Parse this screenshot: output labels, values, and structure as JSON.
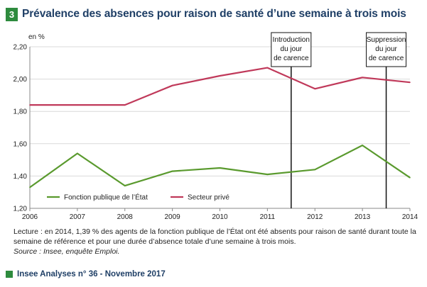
{
  "header": {
    "badge": "3",
    "title": "Prévalence des absences pour raison de santé d’une semaine à trois mois"
  },
  "colors": {
    "green": "#5a9a2e",
    "red": "#c0395a",
    "title": "#1f3f66",
    "badge": "#2e8b3e"
  },
  "chart_data": {
    "type": "line",
    "title": "Prévalence des absences pour raison de santé d’une semaine à trois mois",
    "unit": "en %",
    "x": [
      2006,
      2007,
      2008,
      2009,
      2010,
      2011,
      2012,
      2013,
      2014
    ],
    "xlabels": [
      "2006",
      "2007",
      "2008",
      "2009",
      "2010",
      "2011",
      "2012",
      "2013",
      "2014"
    ],
    "ylim": [
      1.2,
      2.2
    ],
    "yticks": [
      1.2,
      1.4,
      1.6,
      1.8,
      2.0,
      2.2
    ],
    "yticklabels": [
      "1,20",
      "1,40",
      "1,60",
      "1,80",
      "2,00",
      "2,20"
    ],
    "grid": "horizontal",
    "legend_position": "bottom-left",
    "series": [
      {
        "name": "Fonction publique de l’État",
        "color": "#5a9a2e",
        "values": [
          1.33,
          1.54,
          1.34,
          1.43,
          1.45,
          1.41,
          1.44,
          1.59,
          1.39
        ]
      },
      {
        "name": "Secteur privé",
        "color": "#c0395a",
        "values": [
          1.84,
          1.84,
          1.84,
          1.96,
          2.02,
          2.07,
          1.94,
          2.01,
          1.98
        ]
      }
    ],
    "annotations": [
      {
        "x": 2011.5,
        "lines": [
          "Introduction",
          "du jour",
          "de carence"
        ]
      },
      {
        "x": 2013.5,
        "lines": [
          "Suppression",
          "du jour",
          "de carence"
        ]
      }
    ]
  },
  "caption": {
    "lecture": "Lecture : en 2014, 1,39 % des agents de la fonction publique de l’État ont été absents pour raison de santé durant toute la semaine de référence et pour une durée d’absence totale d’une semaine à trois mois.",
    "source": "Source : Insee, enquête Emploi."
  },
  "footer": {
    "text": "Insee Analyses n° 36 - Novembre 2017"
  }
}
